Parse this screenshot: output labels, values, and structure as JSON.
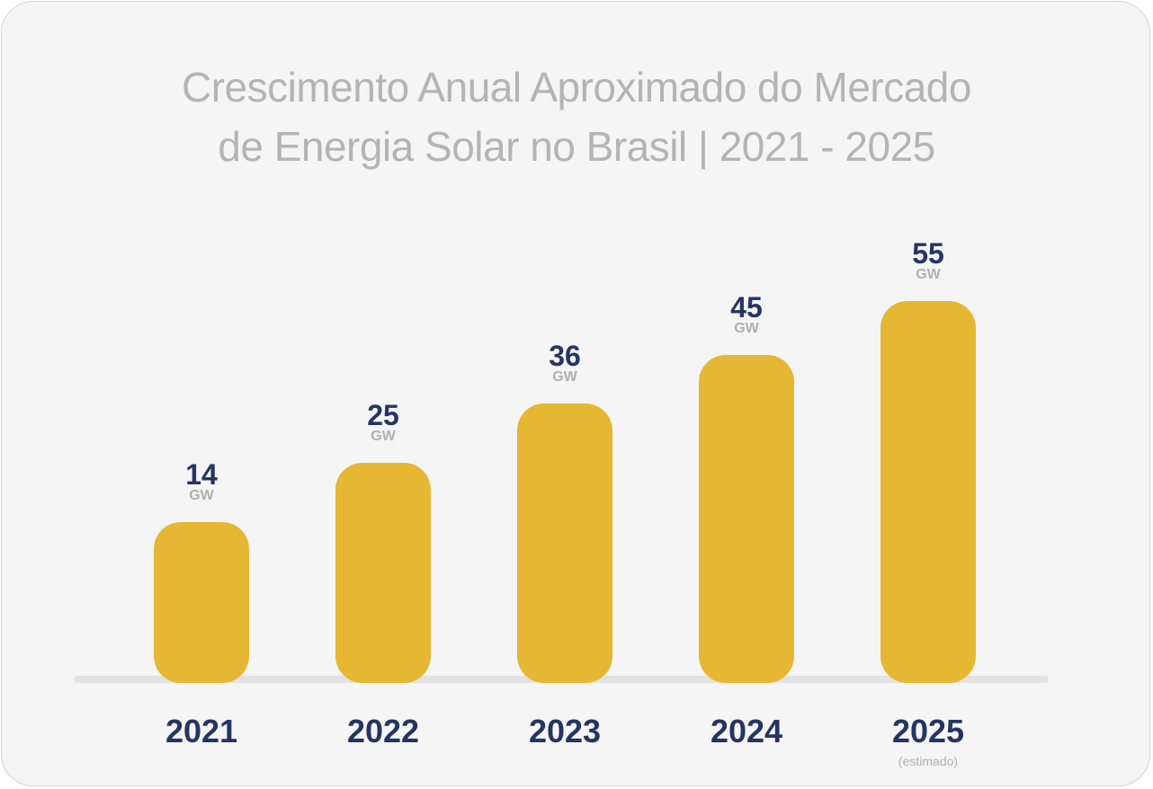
{
  "chart_data": {
    "type": "bar",
    "title": "Crescimento Anual Aproximado do Mercado de Energia Solar no Brasil | 2021 - 2025",
    "title_lines": [
      "Crescimento Anual Aproximado do Mercado",
      "de Energia Solar no Brasil | 2021 - 2025"
    ],
    "categories": [
      "2021",
      "2022",
      "2023",
      "2024",
      "2025"
    ],
    "category_notes": [
      "",
      "",
      "",
      "",
      "(estimado)"
    ],
    "values": [
      14,
      25,
      36,
      45,
      55
    ],
    "value_labels": [
      "14",
      "25",
      "36",
      "45",
      "55"
    ],
    "unit": "GW",
    "xlabel": "",
    "ylabel": "",
    "grid": false,
    "legend": "none",
    "colors": {
      "bar": "#e6b733",
      "value_text": "#243562",
      "unit_text": "#b0b0b0",
      "title": "#b4b4b4",
      "background": "#f5f5f5"
    }
  }
}
